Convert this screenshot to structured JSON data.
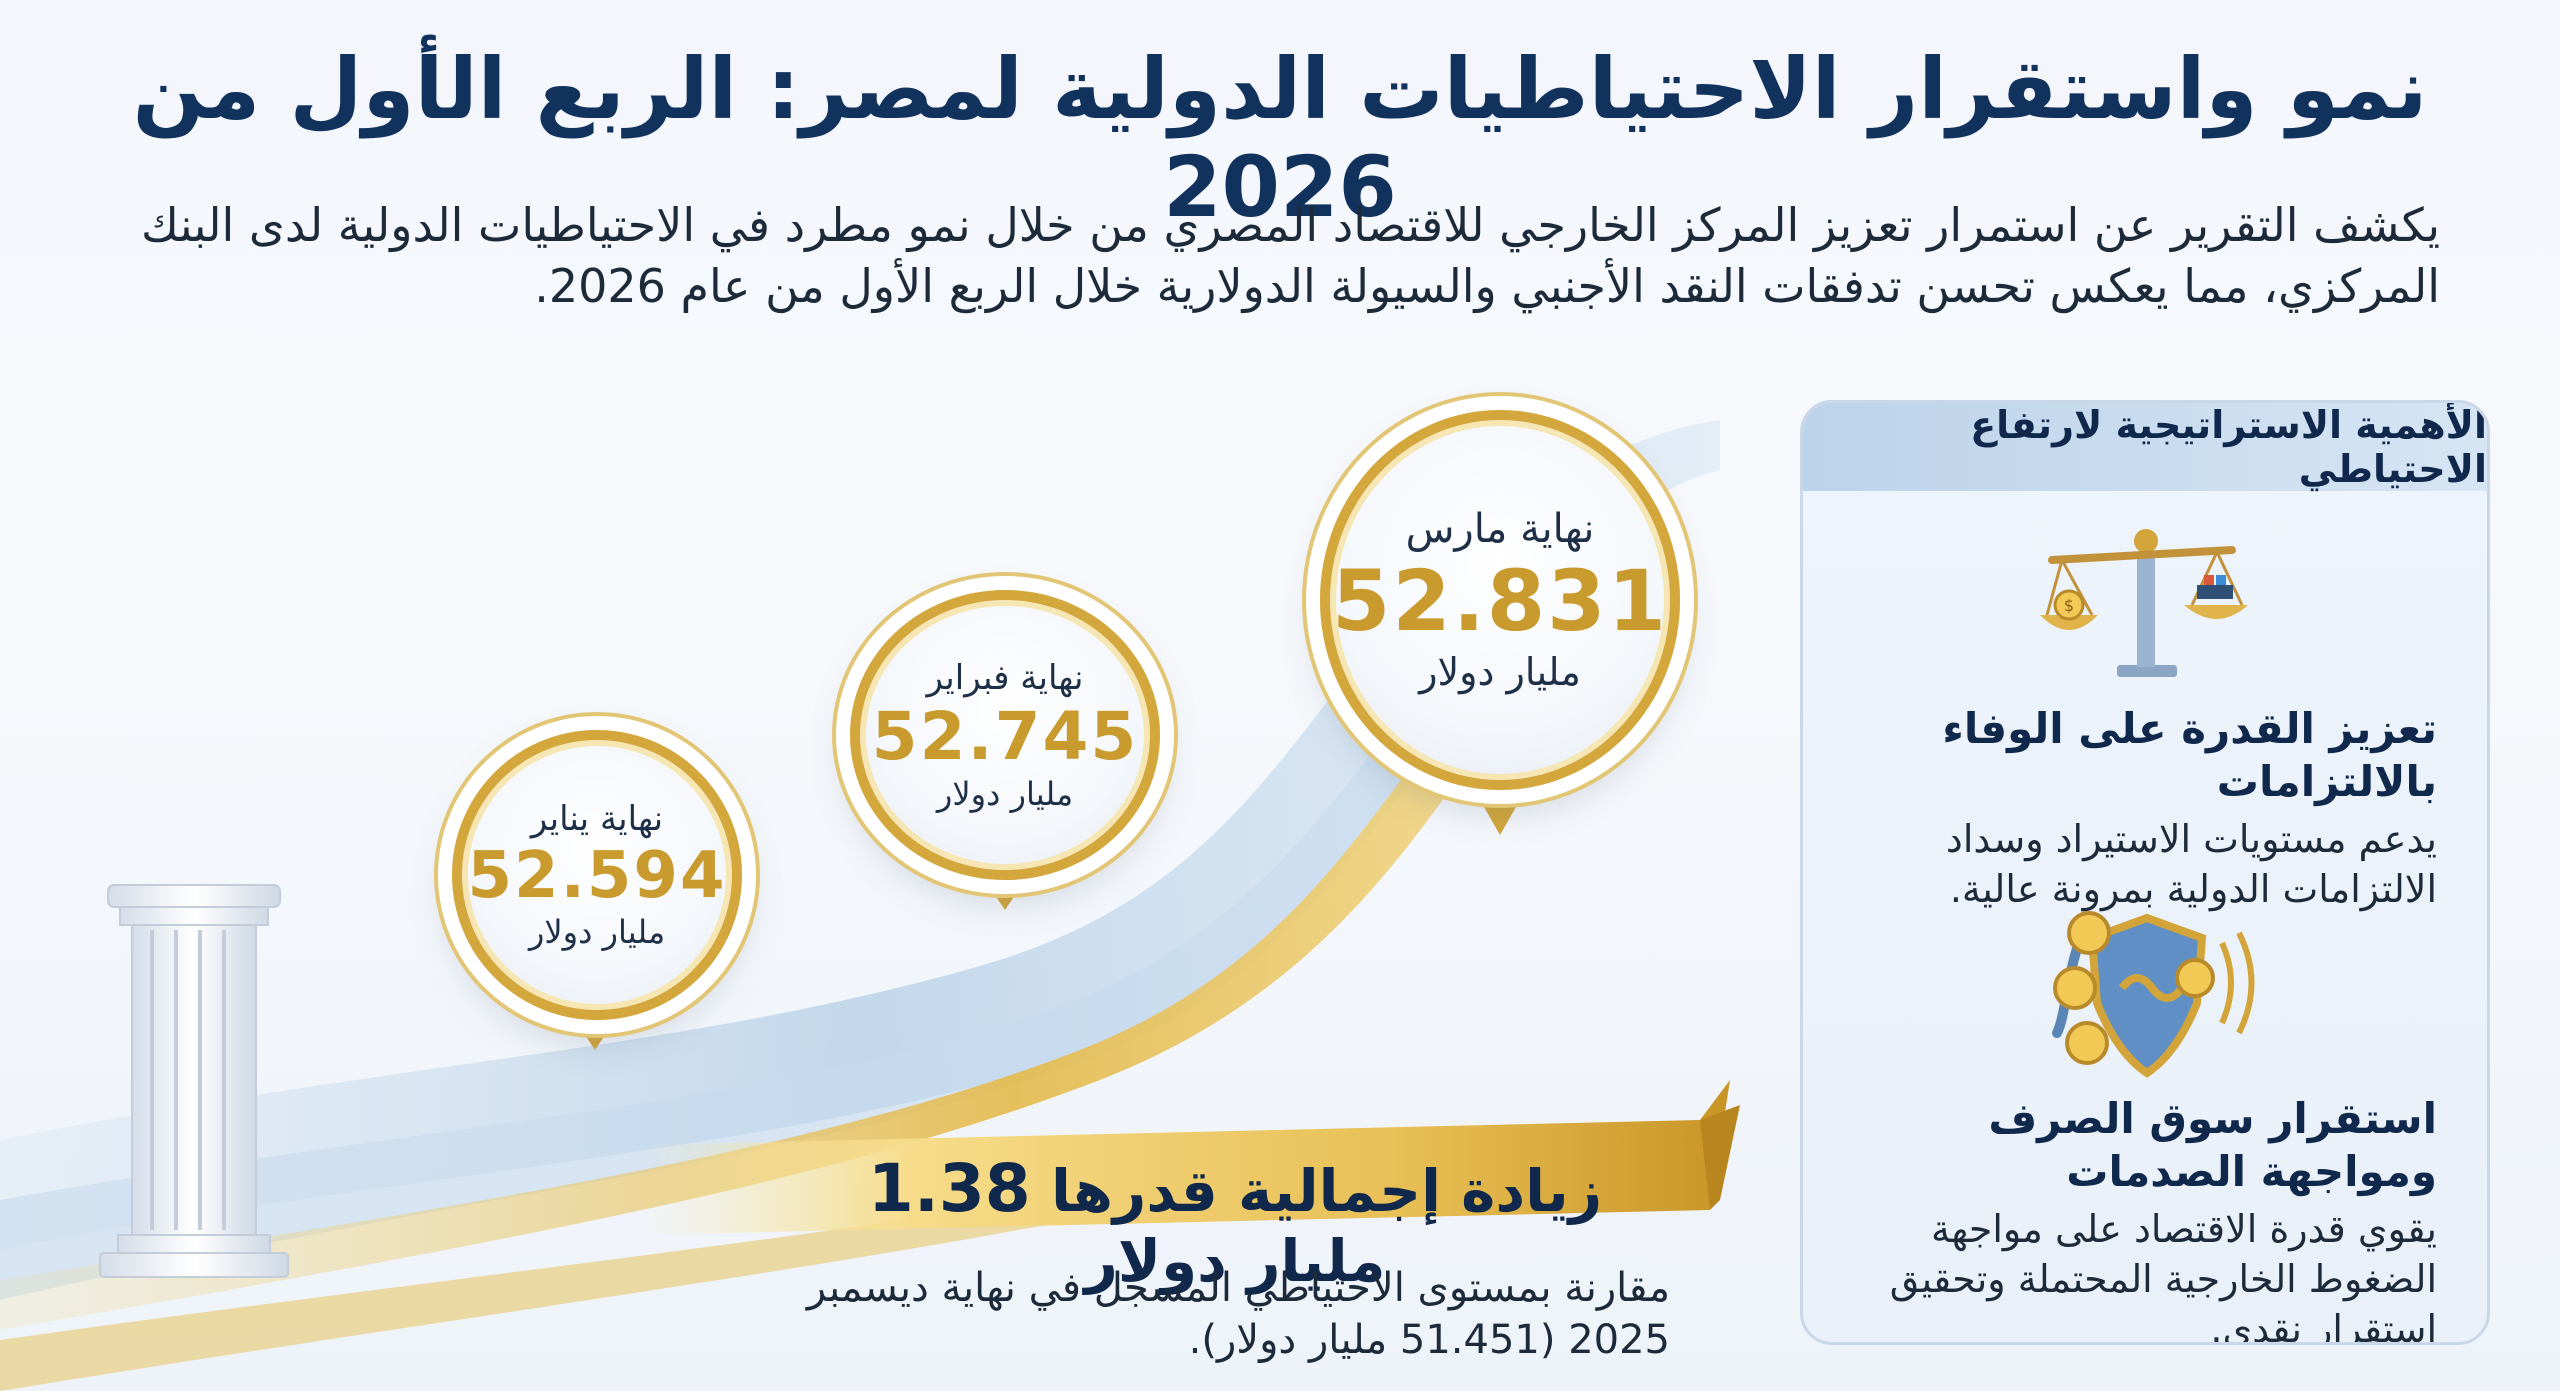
{
  "title": "نمو واستقرار الاحتياطيات الدولية لمصر: الربع الأول من 2026",
  "intro": "يكشف التقرير عن استمرار تعزيز المركز الخارجي للاقتصاد المصري من خلال نمو مطرد في الاحتياطيات الدولية لدى البنك المركزي، مما يعكس تحسن تدفقات النقد الأجنبي والسيولة الدولارية خلال الربع الأول من عام 2026.",
  "milestones": [
    {
      "label": "نهاية يناير",
      "value": "52.594",
      "unit": "مليار دولار"
    },
    {
      "label": "نهاية فبراير",
      "value": "52.745",
      "unit": "مليار دولار"
    },
    {
      "label": "نهاية مارس",
      "value": "52.831",
      "unit": "مليار دولار"
    }
  ],
  "banner": {
    "prefix": "زيادة إجمالية قدرها",
    "amount": "1.38",
    "suffix": "مليار دولار",
    "note": "مقارنة بمستوى الاحتياطي المسجل في نهاية ديسمبر 2025 (51.451 مليار دولار)."
  },
  "sidebar": {
    "heading": "الأهمية الاستراتيجية لارتفاع الاحتياطي",
    "items": [
      {
        "icon": "balance-scale-icon",
        "title": "تعزيز القدرة على الوفاء بالالتزامات",
        "text": "يدعم مستويات الاستيراد وسداد الالتزامات الدولية بمرونة عالية."
      },
      {
        "icon": "shield-coins-icon",
        "title": "استقرار سوق الصرف ومواجهة الصدمات",
        "text": "يقوي قدرة الاقتصاد على مواجهة الضغوط الخارجية المحتملة وتحقيق استقرار نقدي."
      }
    ]
  },
  "colors": {
    "navy": "#12325e",
    "gold": "#c99a2e",
    "panel": "#e9f0f8"
  }
}
